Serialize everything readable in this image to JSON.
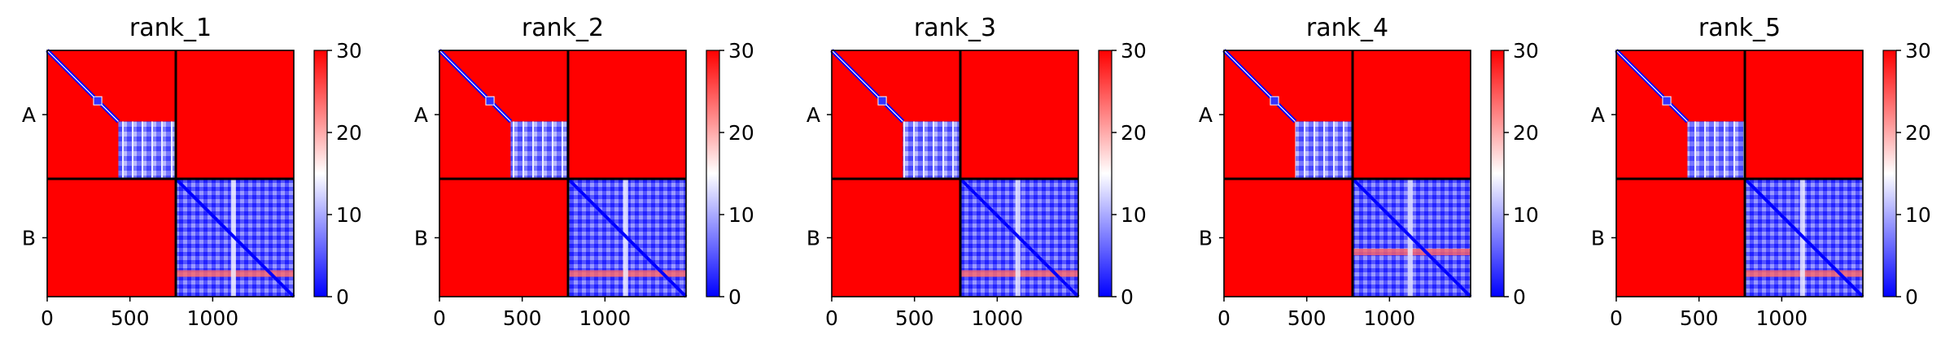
{
  "chart_data": {
    "type": "heatmap",
    "colormap": {
      "name": "bwr",
      "stops": [
        "#0000ff",
        "#ffffff",
        "#ff0000"
      ],
      "range": [
        0,
        30
      ],
      "ticks": [
        "0",
        "10",
        "20",
        "30"
      ]
    },
    "xlim": [
      0,
      1490
    ],
    "ylim": [
      0,
      1490
    ],
    "x_ticks": [
      0,
      500,
      1000
    ],
    "x_tick_labels": [
      "0",
      "500",
      "1000"
    ],
    "chain_boundary": 777,
    "chains": [
      {
        "label": "A",
        "start": 0,
        "end": 777
      },
      {
        "label": "B",
        "start": 777,
        "end": 1490
      }
    ],
    "panels": [
      {
        "title": "rank_1"
      },
      {
        "title": "rank_2"
      },
      {
        "title": "rank_3"
      },
      {
        "title": "rank_4"
      },
      {
        "title": "rank_5"
      }
    ],
    "blocks": {
      "A_A_domain1": {
        "range": [
          0,
          430
        ],
        "off_diagonal_value": 30
      },
      "A_A_domain2": {
        "range": [
          430,
          777
        ],
        "value": 7
      },
      "A_B": {
        "value": 30
      },
      "B_B": {
        "value": 6
      },
      "B_band_range": [
        1330,
        1370
      ],
      "B_band_value": 24
    }
  }
}
